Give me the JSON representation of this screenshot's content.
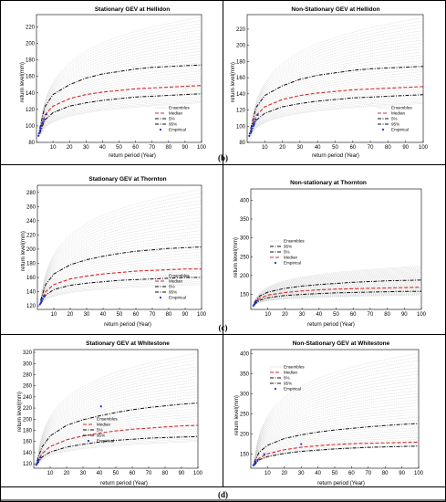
{
  "panel_labels": [
    "(b)",
    "(c)",
    "(d)"
  ],
  "chart_data": [
    {
      "type": "line",
      "title": "Stationary GEV at Hellidon",
      "xlabel": "return period (Year)",
      "ylabel": "return level(mm)",
      "xlim": [
        0,
        100
      ],
      "ylim": [
        80,
        235
      ],
      "xticks": [
        10,
        20,
        30,
        40,
        50,
        60,
        70,
        80,
        90,
        100
      ],
      "yticks": [
        80,
        100,
        120,
        140,
        160,
        180,
        200,
        220
      ],
      "grid": false,
      "legend": "bottom-right",
      "legend_order": [
        "Ensembles",
        "Median",
        "5%",
        "95%",
        "Empirical"
      ],
      "series": [
        {
          "name": "Ensembles",
          "kind": "ensemble",
          "color": "#c4c4c4",
          "x": [
            2,
            100
          ],
          "low": [
            88,
            128
          ],
          "high": [
            97,
            232
          ]
        },
        {
          "name": "Median",
          "kind": "curve",
          "color": "#d62b2b",
          "dash": "dashed",
          "x": [
            2,
            5,
            10,
            20,
            30,
            40,
            50,
            60,
            70,
            80,
            90,
            100
          ],
          "y": [
            94,
            113,
            124,
            133,
            138,
            141,
            143,
            145,
            146,
            147,
            148,
            149
          ]
        },
        {
          "name": "5%",
          "kind": "curve",
          "color": "#111111",
          "dash": "dashdot",
          "x": [
            2,
            5,
            10,
            20,
            30,
            40,
            50,
            60,
            70,
            80,
            90,
            100
          ],
          "y": [
            91,
            107,
            116,
            124,
            128,
            131,
            133,
            135,
            136,
            137,
            138,
            139
          ]
        },
        {
          "name": "95%",
          "kind": "curve",
          "color": "#111111",
          "dash": "dashdot",
          "x": [
            2,
            5,
            10,
            20,
            30,
            40,
            50,
            60,
            70,
            80,
            90,
            100
          ],
          "y": [
            97,
            123,
            138,
            150,
            158,
            163,
            166,
            169,
            171,
            172,
            173,
            174
          ]
        },
        {
          "name": "Empirical",
          "kind": "points",
          "color": "#1a2fd6",
          "x": [
            1.2,
            1.5,
            2,
            2.5,
            3,
            3.5,
            4,
            5,
            6
          ],
          "y": [
            88,
            91,
            94,
            97,
            100,
            103,
            105,
            108,
            114
          ]
        }
      ]
    },
    {
      "type": "line",
      "title": "Non-Stationary GEV at Hellidon",
      "xlabel": "return period (Year)",
      "ylabel": "return level(mm)",
      "xlim": [
        0,
        100
      ],
      "ylim": [
        80,
        238
      ],
      "xticks": [
        10,
        20,
        30,
        40,
        50,
        60,
        70,
        80,
        90,
        100
      ],
      "yticks": [
        80,
        100,
        120,
        140,
        160,
        180,
        200,
        220
      ],
      "grid": false,
      "legend": "bottom-right",
      "legend_order": [
        "Ensembles",
        "Median",
        "5%",
        "95%",
        "Empirical"
      ],
      "series": [
        {
          "name": "Ensembles",
          "kind": "ensemble",
          "color": "#c4c4c4",
          "x": [
            2,
            100
          ],
          "low": [
            88,
            128
          ],
          "high": [
            97,
            234
          ]
        },
        {
          "name": "Median",
          "kind": "curve",
          "color": "#d62b2b",
          "dash": "dashed",
          "x": [
            2,
            5,
            10,
            20,
            30,
            40,
            50,
            60,
            70,
            80,
            90,
            100
          ],
          "y": [
            94,
            113,
            124,
            133,
            138,
            141,
            143,
            145,
            146,
            147,
            148,
            149
          ]
        },
        {
          "name": "5%",
          "kind": "curve",
          "color": "#111111",
          "dash": "dashdot",
          "x": [
            2,
            5,
            10,
            20,
            30,
            40,
            50,
            60,
            70,
            80,
            90,
            100
          ],
          "y": [
            91,
            107,
            116,
            124,
            128,
            131,
            133,
            135,
            136,
            137,
            138,
            139
          ]
        },
        {
          "name": "95%",
          "kind": "curve",
          "color": "#111111",
          "dash": "dashdot",
          "x": [
            2,
            5,
            10,
            20,
            30,
            40,
            50,
            60,
            70,
            80,
            90,
            100
          ],
          "y": [
            97,
            123,
            138,
            150,
            158,
            163,
            166,
            169,
            171,
            172,
            173,
            174
          ]
        },
        {
          "name": "Empirical",
          "kind": "points",
          "color": "#1a2fd6",
          "x": [
            1.2,
            1.5,
            2,
            2.5,
            3,
            3.5,
            4,
            5,
            6
          ],
          "y": [
            88,
            91,
            94,
            97,
            100,
            103,
            105,
            108,
            114
          ]
        }
      ]
    },
    {
      "type": "line",
      "title": "Stationary GEV at Thornton",
      "xlabel": "return period (Year)",
      "ylabel": "return level(mm)",
      "xlim": [
        0,
        100
      ],
      "ylim": [
        115,
        290
      ],
      "xticks": [
        10,
        20,
        30,
        40,
        50,
        60,
        70,
        80,
        90,
        100
      ],
      "yticks": [
        120,
        140,
        160,
        180,
        200,
        220,
        240,
        260,
        280
      ],
      "grid": false,
      "legend": "bottom-right",
      "legend_order": [
        "Ensembles",
        "Median",
        "5%",
        "95%",
        "Empirical"
      ],
      "series": [
        {
          "name": "Ensembles",
          "kind": "ensemble",
          "color": "#c4c4c4",
          "x": [
            2,
            100
          ],
          "low": [
            122,
            150
          ],
          "high": [
            128,
            284
          ]
        },
        {
          "name": "Median",
          "kind": "curve",
          "color": "#d62b2b",
          "dash": "dashed",
          "x": [
            2,
            5,
            10,
            20,
            30,
            40,
            50,
            60,
            70,
            80,
            90,
            100
          ],
          "y": [
            125,
            140,
            150,
            158,
            162,
            165,
            167,
            169,
            170,
            171,
            172,
            172
          ]
        },
        {
          "name": "5%",
          "kind": "curve",
          "color": "#111111",
          "dash": "dashdot",
          "x": [
            2,
            5,
            10,
            20,
            30,
            40,
            50,
            60,
            70,
            80,
            90,
            100
          ],
          "y": [
            123,
            135,
            143,
            149,
            152,
            154,
            156,
            157,
            158,
            159,
            160,
            160
          ]
        },
        {
          "name": "95%",
          "kind": "curve",
          "color": "#111111",
          "dash": "dashdot",
          "x": [
            2,
            5,
            10,
            20,
            30,
            40,
            50,
            60,
            70,
            80,
            90,
            100
          ],
          "y": [
            128,
            150,
            165,
            178,
            185,
            190,
            194,
            197,
            199,
            201,
            202,
            203
          ]
        },
        {
          "name": "Empirical",
          "kind": "points",
          "color": "#1a2fd6",
          "x": [
            1.5,
            2,
            2.5,
            3,
            4
          ],
          "y": [
            122,
            124,
            127,
            130,
            134
          ]
        }
      ]
    },
    {
      "type": "line",
      "title": "Non-stationary at Thornton",
      "xlabel": "return period (Year)",
      "ylabel": "return level(mm)",
      "xlim": [
        0,
        100
      ],
      "ylim": [
        110,
        430
      ],
      "xticks": [
        10,
        20,
        30,
        40,
        50,
        60,
        70,
        80,
        90,
        100
      ],
      "yticks": [
        150,
        200,
        250,
        300,
        350,
        400
      ],
      "grid": false,
      "legend": "top-left",
      "legend_order": [
        "Ensembles",
        "95%",
        "5%",
        "Median",
        "Empirical"
      ],
      "series": [
        {
          "name": "Ensembles",
          "kind": "ensemble",
          "color": "#c4c4c4",
          "x": [
            2,
            100
          ],
          "low": [
            122,
            148
          ],
          "high": [
            130,
            225
          ]
        },
        {
          "name": "95%",
          "kind": "curve",
          "color": "#111111",
          "dash": "dashdot",
          "x": [
            2,
            5,
            10,
            20,
            30,
            40,
            50,
            60,
            70,
            80,
            90,
            100
          ],
          "y": [
            128,
            145,
            156,
            166,
            172,
            176,
            179,
            182,
            184,
            186,
            187,
            188
          ]
        },
        {
          "name": "5%",
          "kind": "curve",
          "color": "#111111",
          "dash": "dashdot",
          "x": [
            2,
            5,
            10,
            20,
            30,
            40,
            50,
            60,
            70,
            80,
            90,
            100
          ],
          "y": [
            122,
            134,
            141,
            147,
            150,
            152,
            154,
            155,
            156,
            157,
            158,
            158
          ]
        },
        {
          "name": "Median",
          "kind": "curve",
          "color": "#d62b2b",
          "dash": "dashed",
          "x": [
            2,
            5,
            10,
            20,
            30,
            40,
            50,
            60,
            70,
            80,
            90,
            100
          ],
          "y": [
            125,
            139,
            148,
            155,
            159,
            162,
            164,
            165,
            166,
            167,
            168,
            169
          ]
        },
        {
          "name": "Empirical",
          "kind": "points",
          "color": "#1a2fd6",
          "x": [
            1.5,
            2,
            2.5,
            3,
            4
          ],
          "y": [
            120,
            123,
            126,
            129,
            133
          ]
        }
      ]
    },
    {
      "type": "line",
      "title": "Stationary GEV at Whitestone",
      "xlabel": "return period (Year)",
      "ylabel": "return level(mm)",
      "xlim": [
        0,
        100
      ],
      "ylim": [
        112,
        325
      ],
      "xticks": [
        10,
        20,
        30,
        40,
        50,
        60,
        70,
        80,
        90,
        100
      ],
      "yticks": [
        120,
        140,
        160,
        180,
        200,
        220,
        240,
        260,
        280,
        300,
        320
      ],
      "grid": false,
      "legend": "bottom-left",
      "legend_order": [
        "Ensembles",
        "Median",
        "5%",
        "95%",
        "Empirical"
      ],
      "series": [
        {
          "name": "Ensembles",
          "kind": "ensemble",
          "color": "#c4c4c4",
          "x": [
            2,
            100
          ],
          "low": [
            117,
            160
          ],
          "high": [
            125,
            318
          ]
        },
        {
          "name": "Median",
          "kind": "curve",
          "color": "#d62b2b",
          "dash": "dashed",
          "x": [
            2,
            5,
            10,
            20,
            30,
            40,
            50,
            60,
            70,
            80,
            90,
            100
          ],
          "y": [
            122,
            138,
            151,
            163,
            170,
            175,
            179,
            182,
            184,
            186,
            188,
            189
          ]
        },
        {
          "name": "5%",
          "kind": "curve",
          "color": "#111111",
          "dash": "dashdot",
          "x": [
            2,
            5,
            10,
            20,
            30,
            40,
            50,
            60,
            70,
            80,
            90,
            100
          ],
          "y": [
            119,
            132,
            141,
            150,
            155,
            159,
            162,
            164,
            166,
            167,
            168,
            169
          ]
        },
        {
          "name": "95%",
          "kind": "curve",
          "color": "#111111",
          "dash": "dashdot",
          "x": [
            2,
            5,
            10,
            20,
            30,
            40,
            50,
            60,
            70,
            80,
            90,
            100
          ],
          "y": [
            125,
            150,
            170,
            189,
            199,
            206,
            212,
            217,
            221,
            224,
            227,
            229
          ]
        },
        {
          "name": "Empirical",
          "kind": "points",
          "color": "#1a2fd6",
          "x": [
            1.5,
            2,
            2.5,
            3,
            4,
            41
          ],
          "y": [
            118,
            121,
            124,
            127,
            131,
            223
          ]
        }
      ]
    },
    {
      "type": "line",
      "title": "Non-Stationary GEV at Whitestone",
      "xlabel": "return period (Year)",
      "ylabel": "return level(mm)",
      "xlim": [
        0,
        100
      ],
      "ylim": [
        115,
        410
      ],
      "xticks": [
        10,
        20,
        30,
        40,
        50,
        60,
        70,
        80,
        90,
        100
      ],
      "yticks": [
        150,
        200,
        250,
        300,
        350,
        400
      ],
      "grid": false,
      "legend": "top-left",
      "legend_order": [
        "Ensembles",
        "Median",
        "5%",
        "95%",
        "Empirical"
      ],
      "series": [
        {
          "name": "Ensembles",
          "kind": "ensemble",
          "color": "#c4c4c4",
          "x": [
            2,
            100
          ],
          "low": [
            122,
            170
          ],
          "high": [
            135,
            400
          ]
        },
        {
          "name": "Median",
          "kind": "curve",
          "color": "#d62b2b",
          "dash": "dashed",
          "x": [
            2,
            5,
            10,
            20,
            30,
            40,
            50,
            60,
            70,
            80,
            90,
            100
          ],
          "y": [
            125,
            140,
            151,
            161,
            167,
            171,
            174,
            176,
            177,
            178,
            179,
            180
          ]
        },
        {
          "name": "5%",
          "kind": "curve",
          "color": "#111111",
          "dash": "dashdot",
          "x": [
            2,
            5,
            10,
            20,
            30,
            40,
            50,
            60,
            70,
            80,
            90,
            100
          ],
          "y": [
            122,
            136,
            144,
            152,
            157,
            160,
            163,
            165,
            167,
            168,
            169,
            170
          ]
        },
        {
          "name": "95%",
          "kind": "curve",
          "color": "#111111",
          "dash": "dashdot",
          "x": [
            2,
            5,
            10,
            20,
            30,
            40,
            50,
            60,
            70,
            80,
            90,
            100
          ],
          "y": [
            130,
            155,
            172,
            189,
            198,
            205,
            210,
            214,
            218,
            221,
            224,
            226
          ]
        },
        {
          "name": "Empirical",
          "kind": "points",
          "color": "#1a2fd6",
          "x": [
            1.5,
            2,
            2.5,
            3,
            4,
            8,
            30
          ],
          "y": [
            122,
            125,
            128,
            131,
            135,
            150,
            175
          ]
        }
      ]
    }
  ]
}
